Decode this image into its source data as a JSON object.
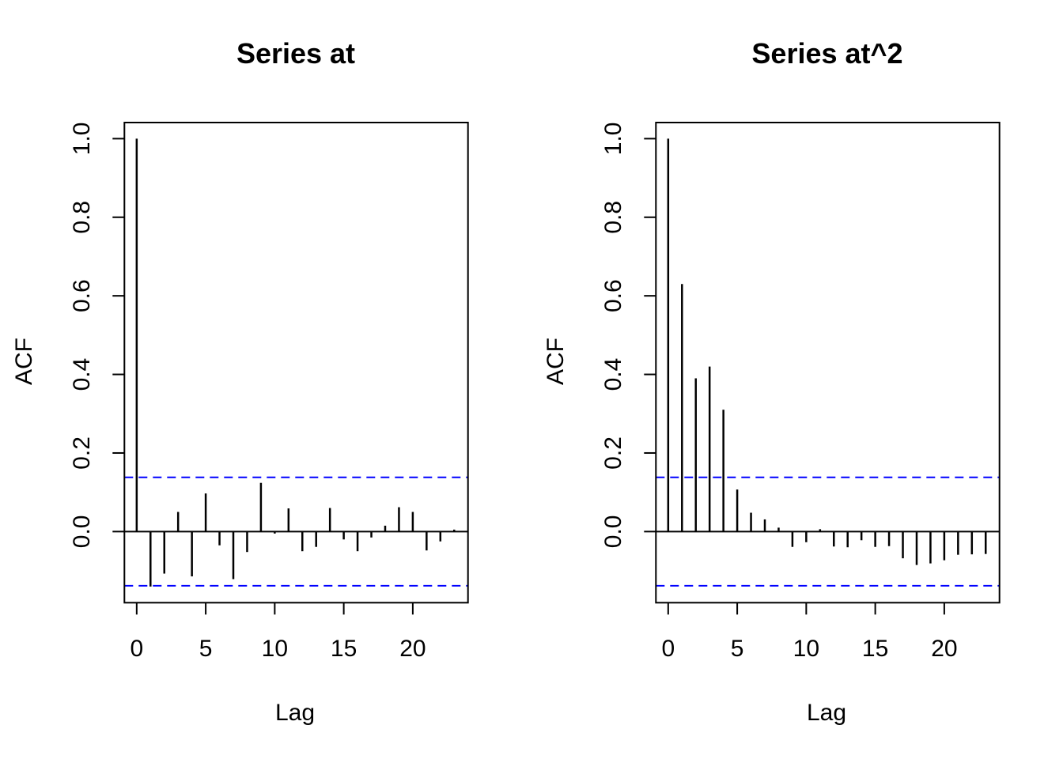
{
  "figure": {
    "background": "#ffffff",
    "axis_color": "#000000",
    "bar_color": "#000000",
    "confidence_line_color": "#0000ff"
  },
  "chart_data": [
    {
      "type": "bar",
      "title": "Series  at",
      "xlabel": "Lag",
      "ylabel": "ACF",
      "lags": [
        0,
        1,
        2,
        3,
        4,
        5,
        6,
        7,
        8,
        9,
        10,
        11,
        12,
        13,
        14,
        15,
        16,
        17,
        18,
        19,
        20,
        21,
        22,
        23
      ],
      "values": [
        1.0,
        -0.14,
        -0.107,
        0.05,
        -0.114,
        0.097,
        -0.035,
        -0.121,
        -0.052,
        0.124,
        -0.005,
        0.059,
        -0.05,
        -0.039,
        0.06,
        -0.02,
        -0.05,
        -0.015,
        0.015,
        0.062,
        0.05,
        -0.048,
        -0.025,
        0.005
      ],
      "confidence_bounds": [
        -0.138,
        0.138
      ],
      "confidence_line_style": "dashed",
      "x_tick_values": [
        0,
        5,
        10,
        15,
        20
      ],
      "x_tick_labels": [
        "0",
        "5",
        "10",
        "15",
        "20"
      ],
      "y_tick_values": [
        0.0,
        0.2,
        0.4,
        0.6,
        0.8,
        1.0
      ],
      "y_tick_labels": [
        "0.0",
        "0.2",
        "0.4",
        "0.6",
        "0.8",
        "1.0"
      ],
      "xlim": [
        -0.89,
        24.0
      ],
      "ylim": [
        -0.181,
        1.041
      ],
      "grid": false,
      "legend": null
    },
    {
      "type": "bar",
      "title": "Series  at^2",
      "xlabel": "Lag",
      "ylabel": "ACF",
      "lags": [
        0,
        1,
        2,
        3,
        4,
        5,
        6,
        7,
        8,
        9,
        10,
        11,
        12,
        13,
        14,
        15,
        16,
        17,
        18,
        19,
        20,
        21,
        22,
        23
      ],
      "values": [
        1.0,
        0.63,
        0.39,
        0.42,
        0.31,
        0.107,
        0.048,
        0.031,
        0.01,
        -0.039,
        -0.027,
        0.006,
        -0.038,
        -0.04,
        -0.022,
        -0.039,
        -0.037,
        -0.068,
        -0.085,
        -0.081,
        -0.073,
        -0.059,
        -0.058,
        -0.057
      ],
      "confidence_bounds": [
        -0.138,
        0.138
      ],
      "confidence_line_style": "dashed",
      "x_tick_values": [
        0,
        5,
        10,
        15,
        20
      ],
      "x_tick_labels": [
        "0",
        "5",
        "10",
        "15",
        "20"
      ],
      "y_tick_values": [
        0.0,
        0.2,
        0.4,
        0.6,
        0.8,
        1.0
      ],
      "y_tick_labels": [
        "0.0",
        "0.2",
        "0.4",
        "0.6",
        "0.8",
        "1.0"
      ],
      "xlim": [
        -0.89,
        24.0
      ],
      "ylim": [
        -0.181,
        1.041
      ],
      "grid": false,
      "legend": null
    }
  ]
}
